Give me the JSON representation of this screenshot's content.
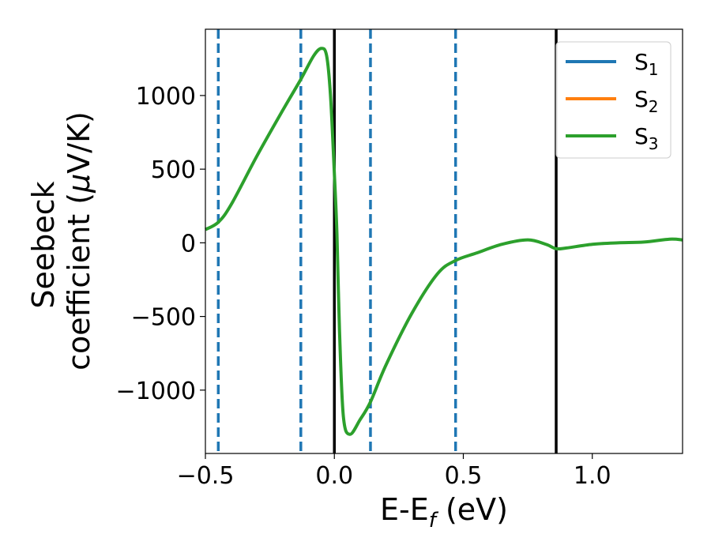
{
  "chart_data": {
    "type": "line",
    "xlabel": "E-E",
    "xlabel_sub": "f",
    "xlabel_unit": "(eV)",
    "ylabel_line1": "Seebeck",
    "ylabel_line2": "coefficient  (",
    "ylabel_mu": "μ",
    "ylabel_unit": "V/K)",
    "xlim": [
      -0.5,
      1.35
    ],
    "ylim": [
      -1430,
      1450
    ],
    "xticks": [
      -0.5,
      0.0,
      0.5,
      1.0
    ],
    "xtick_labels": [
      "−0.5",
      "0.0",
      "0.5",
      "1.0"
    ],
    "yticks": [
      -1000,
      -500,
      0,
      500,
      1000
    ],
    "ytick_labels": [
      "−1000",
      "−500",
      "0",
      "500",
      "1000"
    ],
    "grid": false,
    "legend_position": "top-right",
    "colors": {
      "S1": "#1f77b4",
      "S2": "#ff7f0e",
      "S3": "#2ca02c",
      "vline_solid": "#000000",
      "vline_dashed": "#1f77b4"
    },
    "vlines_solid": [
      0.0,
      0.86
    ],
    "vlines_dashed": [
      -0.45,
      -0.13,
      0.14,
      0.47
    ],
    "series": [
      {
        "name": "S",
        "sub": "1",
        "color": "#1f77b4",
        "x": [],
        "y": []
      },
      {
        "name": "S",
        "sub": "2",
        "color": "#ff7f0e",
        "x": [],
        "y": []
      },
      {
        "name": "S",
        "sub": "3",
        "color": "#2ca02c",
        "x": [
          -0.5,
          -0.45,
          -0.4,
          -0.3,
          -0.2,
          -0.13,
          -0.08,
          -0.05,
          -0.03,
          -0.015,
          0.0,
          0.01,
          0.02,
          0.035,
          0.06,
          0.1,
          0.14,
          0.2,
          0.3,
          0.4,
          0.47,
          0.55,
          0.65,
          0.75,
          0.82,
          0.86,
          0.9,
          1.0,
          1.1,
          1.2,
          1.3,
          1.35
        ],
        "y": [
          90,
          140,
          260,
          590,
          900,
          1110,
          1270,
          1320,
          1270,
          1000,
          470,
          60,
          -600,
          -1180,
          -1300,
          -1200,
          -1080,
          -830,
          -480,
          -210,
          -120,
          -70,
          -10,
          20,
          -10,
          -40,
          -35,
          -10,
          0,
          5,
          25,
          20
        ]
      }
    ]
  }
}
